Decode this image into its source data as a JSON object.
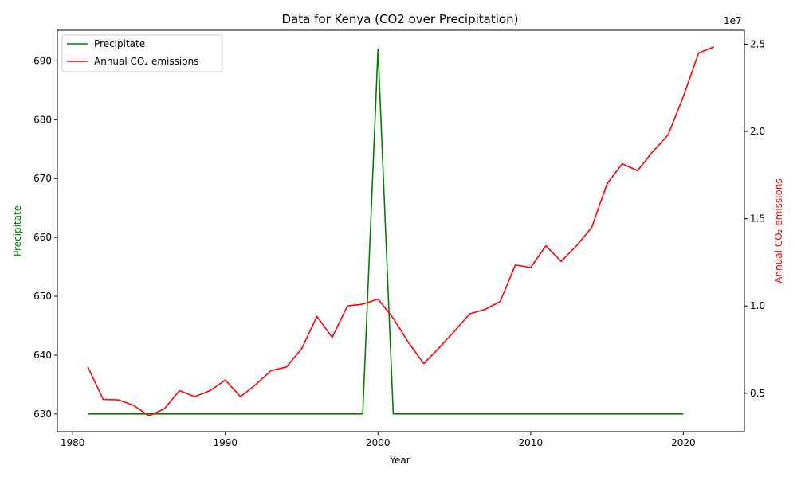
{
  "chart_data": {
    "type": "line",
    "title": "Data for Kenya (CO2 over Precipitation)",
    "xlabel": "Year",
    "ylabel_left": "Precipitate",
    "ylabel_right": "Annual CO₂ emissions",
    "right_axis_multiplier": "1e7",
    "xlim": [
      1979,
      2024
    ],
    "ylim_left": [
      627,
      695.2
    ],
    "ylim_right": [
      2800000,
      25800000
    ],
    "x_ticks": [
      1980,
      1990,
      2000,
      2010,
      2020
    ],
    "y_ticks_left": [
      630,
      640,
      650,
      660,
      670,
      680,
      690
    ],
    "y_ticks_right": [
      0.5,
      1.0,
      1.5,
      2.0,
      2.5
    ],
    "grid": false,
    "legend_position": "top-left",
    "colors": {
      "precipitate": "#008000",
      "co2": "#ff0000"
    },
    "series": [
      {
        "name": "Precipitate",
        "axis": "left",
        "color": "#008000",
        "x": [
          1981,
          1982,
          1983,
          1984,
          1985,
          1986,
          1987,
          1988,
          1989,
          1990,
          1991,
          1992,
          1993,
          1994,
          1995,
          1996,
          1997,
          1998,
          1999,
          2000,
          2001,
          2002,
          2003,
          2004,
          2005,
          2006,
          2007,
          2008,
          2009,
          2010,
          2011,
          2012,
          2013,
          2014,
          2015,
          2016,
          2017,
          2018,
          2019,
          2020
        ],
        "y": [
          630,
          630,
          630,
          630,
          630,
          630,
          630,
          630,
          630,
          630,
          630,
          630,
          630,
          630,
          630,
          630,
          630,
          630,
          630,
          692,
          630,
          630,
          630,
          630,
          630,
          630,
          630,
          630,
          630,
          630,
          630,
          630,
          630,
          630,
          630,
          630,
          630,
          630,
          630,
          630
        ]
      },
      {
        "name": "Annual CO₂ emissions",
        "axis": "right",
        "color": "#ff0000",
        "x": [
          1981,
          1982,
          1983,
          1984,
          1985,
          1986,
          1987,
          1988,
          1989,
          1990,
          1991,
          1992,
          1993,
          1994,
          1995,
          1996,
          1997,
          1998,
          1999,
          2000,
          2001,
          2002,
          2003,
          2004,
          2005,
          2006,
          2007,
          2008,
          2009,
          2010,
          2011,
          2012,
          2013,
          2014,
          2015,
          2016,
          2017,
          2018,
          2019,
          2020,
          2021,
          2022
        ],
        "y": [
          6500000,
          4650000,
          4620000,
          4300000,
          3700000,
          4100000,
          5150000,
          4800000,
          5150000,
          5750000,
          4800000,
          5500000,
          6300000,
          6500000,
          7550000,
          9400000,
          8200000,
          10000000,
          10100000,
          10400000,
          9300000,
          7900000,
          6700000,
          7600000,
          8550000,
          9550000,
          9800000,
          10250000,
          12350000,
          12200000,
          13450000,
          12550000,
          13450000,
          14500000,
          17000000,
          18150000,
          17750000,
          18850000,
          19800000,
          22000000,
          24500000,
          24850000
        ]
      }
    ]
  }
}
